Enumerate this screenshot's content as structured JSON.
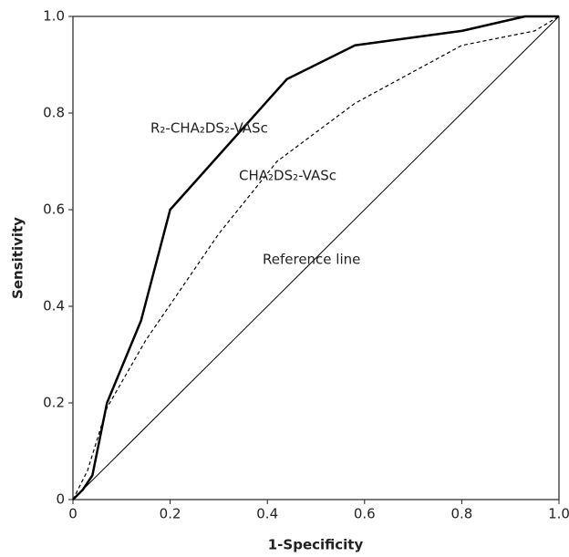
{
  "chart_data": {
    "type": "line",
    "xlabel": "1-Specificity",
    "ylabel": "Sensitivity",
    "xlim": [
      0,
      1
    ],
    "ylim": [
      0,
      1
    ],
    "xticks": [
      0,
      0.2,
      0.4,
      0.6,
      0.8,
      {
        "value": 1,
        "label": "1.0"
      }
    ],
    "yticks": [
      0,
      0.2,
      0.4,
      0.6,
      0.8,
      {
        "value": 1,
        "label": "1.0"
      }
    ],
    "series": [
      {
        "name": "R₂-CHA₂DS₂-VASc",
        "color": "#000000",
        "line_style": "solid-thick",
        "x": [
          0,
          0.02,
          0.04,
          0.07,
          0.14,
          0.2,
          0.44,
          0.58,
          0.8,
          0.93,
          1
        ],
        "values": [
          0,
          0.02,
          0.05,
          0.2,
          0.37,
          0.6,
          0.87,
          0.94,
          0.97,
          1,
          1
        ]
      },
      {
        "name": "CHA₂DS₂-VASc",
        "color": "#000000",
        "line_style": "dashed",
        "x": [
          0,
          0.03,
          0.07,
          0.15,
          0.3,
          0.42,
          0.58,
          0.8,
          0.95,
          1
        ],
        "values": [
          0,
          0.06,
          0.19,
          0.33,
          0.55,
          0.7,
          0.82,
          0.94,
          0.97,
          1
        ]
      },
      {
        "name": "Reference line",
        "color": "#000000",
        "line_style": "solid-thin",
        "x": [
          0,
          1
        ],
        "values": [
          0,
          1
        ]
      }
    ]
  }
}
